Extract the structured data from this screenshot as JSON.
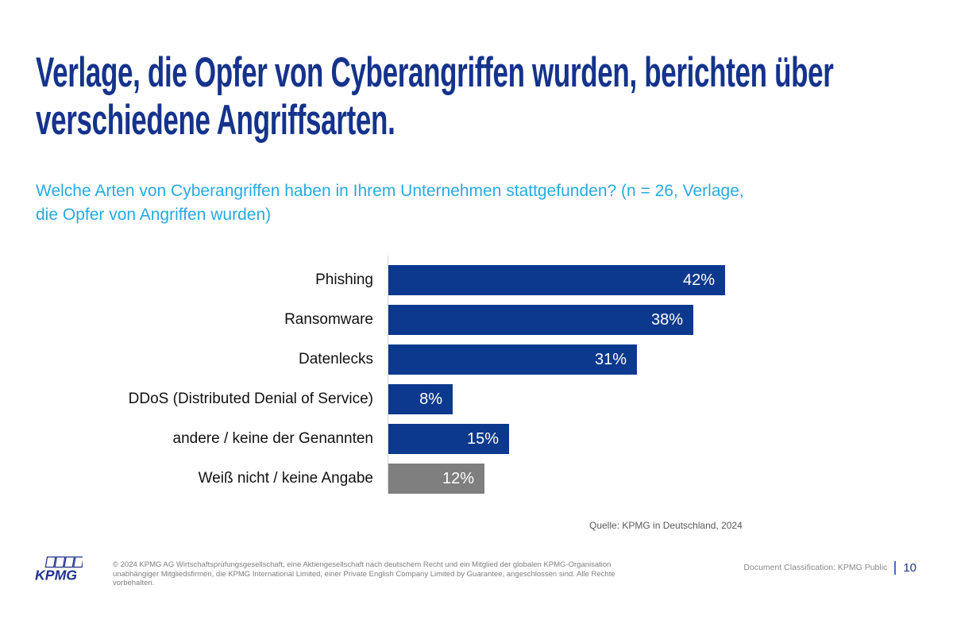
{
  "slide": {
    "title_lines": [
      "Verlage, die Opfer von Cyberangriffen wurden, berichten über",
      "verschiedene Angriffsarten."
    ],
    "subtitle_lines": [
      "Welche Arten von Cyberangriffen haben in Ihrem Unternehmen stattgefunden? (n = 26, Verlage,",
      "die Opfer von Angriffen wurden)"
    ]
  },
  "chart_data": {
    "type": "bar",
    "orientation": "horizontal",
    "title": "Welche Arten von Cyberangriffen haben in Ihrem Unternehmen stattgefunden? (n = 26, Verlage, die Opfer von Angriffen wurden)",
    "categories": [
      "Phishing",
      "Ransomware",
      "Datenlecks",
      "DDoS (Distributed Denial of Service)",
      "andere / keine der Genannten",
      "Weiß nicht / keine Angabe"
    ],
    "values": [
      42,
      38,
      31,
      8,
      15,
      12
    ],
    "unit": "%",
    "data_labels": [
      "42%",
      "38%",
      "31%",
      "8%",
      "15%",
      "12%"
    ],
    "bar_colors": [
      "#0C398E",
      "#0C398E",
      "#0C398E",
      "#0C398E",
      "#0C398E",
      "#7F7F7F"
    ],
    "data_label_color": "#FFFFFF",
    "xlim": [
      0,
      66
    ],
    "grid": false,
    "legend": false,
    "source": "Quelle: KPMG in Deutschland, 2024"
  },
  "footer": {
    "logo_text": "KPMG",
    "copyright_lines": [
      "© 2024 KPMG AG Wirtschaftsprüfungsgesellschaft, eine Aktiengesellschaft nach deutschem Recht und ein Mitglied der globalen KPMG-Organisation",
      "unabhängiger Mitgliedsfirmen, die KPMG International Limited, einer Private English Company Limited by Guarantee, angeschlossen sind. Alle Rechte vorbehalten."
    ],
    "classification": "Document Classification: KPMG Public",
    "page_number": "10"
  },
  "colors": {
    "title_blue": "#15338C",
    "subtitle_blue": "#27AAE1",
    "bar_blue": "#0C398E",
    "bar_gray": "#7F7F7F",
    "axis_line": "#D6D6D6"
  }
}
